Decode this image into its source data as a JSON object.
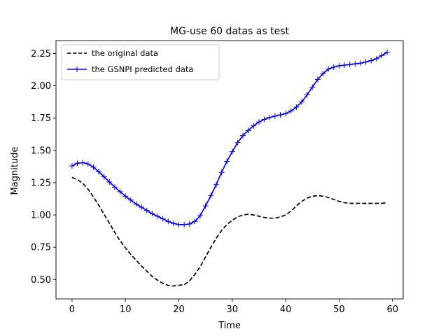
{
  "chart_data": {
    "type": "line",
    "title": "MG-use 60 datas as test",
    "xlabel": "Time",
    "ylabel": "Magnitude",
    "xlim": [
      -3,
      62
    ],
    "ylim": [
      0.35,
      2.35
    ],
    "xticks": [
      0,
      10,
      20,
      30,
      40,
      50,
      60
    ],
    "yticks": [
      0.5,
      0.75,
      1.0,
      1.25,
      1.5,
      1.75,
      2.0,
      2.25
    ],
    "ytick_labels": [
      "0.50",
      "0.75",
      "1.00",
      "1.25",
      "1.50",
      "1.75",
      "2.00",
      "2.25"
    ],
    "grid": false,
    "legend_position": "top-left",
    "series": [
      {
        "name": "the original data",
        "color": "#000000",
        "line_style": "dashed",
        "marker": "none",
        "x": [
          0,
          1,
          2,
          3,
          4,
          5,
          6,
          7,
          8,
          9,
          10,
          11,
          12,
          13,
          14,
          15,
          16,
          17,
          18,
          19,
          20,
          21,
          22,
          23,
          24,
          25,
          26,
          27,
          28,
          29,
          30,
          31,
          32,
          33,
          34,
          35,
          36,
          37,
          38,
          39,
          40,
          41,
          42,
          43,
          44,
          45,
          46,
          47,
          48,
          49,
          50,
          51,
          52,
          53,
          54,
          55,
          56,
          57,
          58,
          59
        ],
        "values": [
          1.29,
          1.275,
          1.245,
          1.2,
          1.14,
          1.075,
          1.005,
          0.935,
          0.865,
          0.8,
          0.745,
          0.695,
          0.65,
          0.605,
          0.565,
          0.525,
          0.495,
          0.47,
          0.455,
          0.45,
          0.455,
          0.46,
          0.49,
          0.54,
          0.6,
          0.675,
          0.75,
          0.82,
          0.88,
          0.925,
          0.96,
          0.985,
          1.0,
          1.005,
          1.0,
          0.99,
          0.98,
          0.975,
          0.975,
          0.985,
          1.0,
          1.03,
          1.07,
          1.105,
          1.13,
          1.145,
          1.15,
          1.145,
          1.135,
          1.12,
          1.105,
          1.095,
          1.09,
          1.09,
          1.09,
          1.09,
          1.09,
          1.09,
          1.09,
          1.095
        ]
      },
      {
        "name": "the GSNPI predicted data",
        "color": "#0000ff",
        "line_style": "solid",
        "marker": "plus",
        "x": [
          0,
          1,
          2,
          3,
          4,
          5,
          6,
          7,
          8,
          9,
          10,
          11,
          12,
          13,
          14,
          15,
          16,
          17,
          18,
          19,
          20,
          21,
          22,
          23,
          24,
          25,
          26,
          27,
          28,
          29,
          30,
          31,
          32,
          33,
          34,
          35,
          36,
          37,
          38,
          39,
          40,
          41,
          42,
          43,
          44,
          45,
          46,
          47,
          48,
          49,
          50,
          51,
          52,
          53,
          54,
          55,
          56,
          57,
          58,
          59
        ],
        "values": [
          1.38,
          1.4,
          1.405,
          1.395,
          1.37,
          1.335,
          1.295,
          1.255,
          1.215,
          1.18,
          1.145,
          1.115,
          1.085,
          1.06,
          1.035,
          1.01,
          0.99,
          0.97,
          0.95,
          0.935,
          0.925,
          0.925,
          0.93,
          0.95,
          0.995,
          1.07,
          1.15,
          1.235,
          1.33,
          1.415,
          1.49,
          1.56,
          1.615,
          1.655,
          1.69,
          1.72,
          1.74,
          1.755,
          1.765,
          1.775,
          1.785,
          1.805,
          1.835,
          1.875,
          1.93,
          1.99,
          2.05,
          2.095,
          2.13,
          2.145,
          2.155,
          2.16,
          2.165,
          2.17,
          2.175,
          2.185,
          2.195,
          2.21,
          2.235,
          2.26
        ]
      }
    ]
  }
}
